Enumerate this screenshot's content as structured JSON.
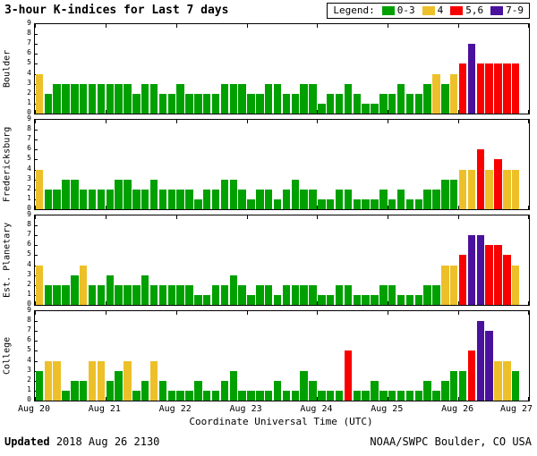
{
  "page": {
    "title": "3-hour K-indices for Last 7 days",
    "footer": {
      "updated_label": "Updated",
      "updated_value": "2018 Aug 26 2130",
      "credit": "NOAA/SWPC Boulder, CO USA"
    }
  },
  "legend": {
    "label": "Legend:",
    "items": [
      {
        "label": "0-3",
        "color": "#00A000",
        "kmin": 0,
        "kmax": 3
      },
      {
        "label": "4",
        "color": "#EDC029",
        "kmin": 4,
        "kmax": 4
      },
      {
        "label": "5,6",
        "color": "#F80000",
        "kmin": 5,
        "kmax": 6
      },
      {
        "label": "7-9",
        "color": "#4A129C",
        "kmin": 7,
        "kmax": 9
      }
    ]
  },
  "chart_data": {
    "type": "bar",
    "title": "3-hour K-indices for Last 7 days",
    "xlabel": "Coordinate Universal Time (UTC)",
    "x_tick_labels": [
      "Aug 20",
      "Aug 21",
      "Aug 22",
      "Aug 23",
      "Aug 24",
      "Aug 25",
      "Aug 26",
      "Aug 27"
    ],
    "bars_per_day": 8,
    "days": 7,
    "bar_period_hours": 3,
    "ylim": [
      0,
      9
    ],
    "y_ticks": [
      0,
      1,
      2,
      3,
      4,
      5,
      6,
      7,
      8,
      9
    ],
    "grid": false,
    "legend_position": "top-right",
    "series": [
      {
        "name": "Boulder",
        "values": [
          4,
          2,
          3,
          3,
          3,
          3,
          3,
          3,
          3,
          3,
          3,
          2,
          3,
          3,
          2,
          2,
          3,
          2,
          2,
          2,
          2,
          3,
          3,
          3,
          2,
          2,
          3,
          3,
          2,
          2,
          3,
          3,
          1,
          2,
          2,
          3,
          2,
          1,
          1,
          2,
          2,
          3,
          2,
          2,
          3,
          4,
          3,
          4,
          5,
          7,
          5,
          5,
          5,
          5,
          5
        ]
      },
      {
        "name": "Fredericksburg",
        "values": [
          4,
          2,
          2,
          3,
          3,
          2,
          2,
          2,
          2,
          3,
          3,
          2,
          2,
          3,
          2,
          2,
          2,
          2,
          1,
          2,
          2,
          3,
          3,
          2,
          1,
          2,
          2,
          1,
          2,
          3,
          2,
          2,
          1,
          1,
          2,
          2,
          1,
          1,
          1,
          2,
          1,
          2,
          1,
          1,
          2,
          2,
          3,
          3,
          4,
          4,
          6,
          4,
          5,
          4,
          4
        ]
      },
      {
        "name": "Est. Planetary",
        "values": [
          4,
          2,
          2,
          2,
          3,
          4,
          2,
          2,
          3,
          2,
          2,
          2,
          3,
          2,
          2,
          2,
          2,
          2,
          1,
          1,
          2,
          2,
          3,
          2,
          1,
          2,
          2,
          1,
          2,
          2,
          2,
          2,
          1,
          1,
          2,
          2,
          1,
          1,
          1,
          2,
          2,
          1,
          1,
          1,
          2,
          2,
          4,
          4,
          5,
          7,
          7,
          6,
          6,
          5,
          4
        ]
      },
      {
        "name": "College",
        "values": [
          3,
          4,
          4,
          1,
          2,
          2,
          4,
          4,
          2,
          3,
          4,
          1,
          2,
          4,
          2,
          1,
          1,
          1,
          2,
          1,
          1,
          2,
          3,
          1,
          1,
          1,
          1,
          2,
          1,
          1,
          3,
          2,
          1,
          1,
          1,
          5,
          1,
          1,
          2,
          1,
          1,
          1,
          1,
          1,
          2,
          1,
          2,
          3,
          3,
          5,
          8,
          7,
          4,
          4,
          3
        ]
      }
    ]
  }
}
